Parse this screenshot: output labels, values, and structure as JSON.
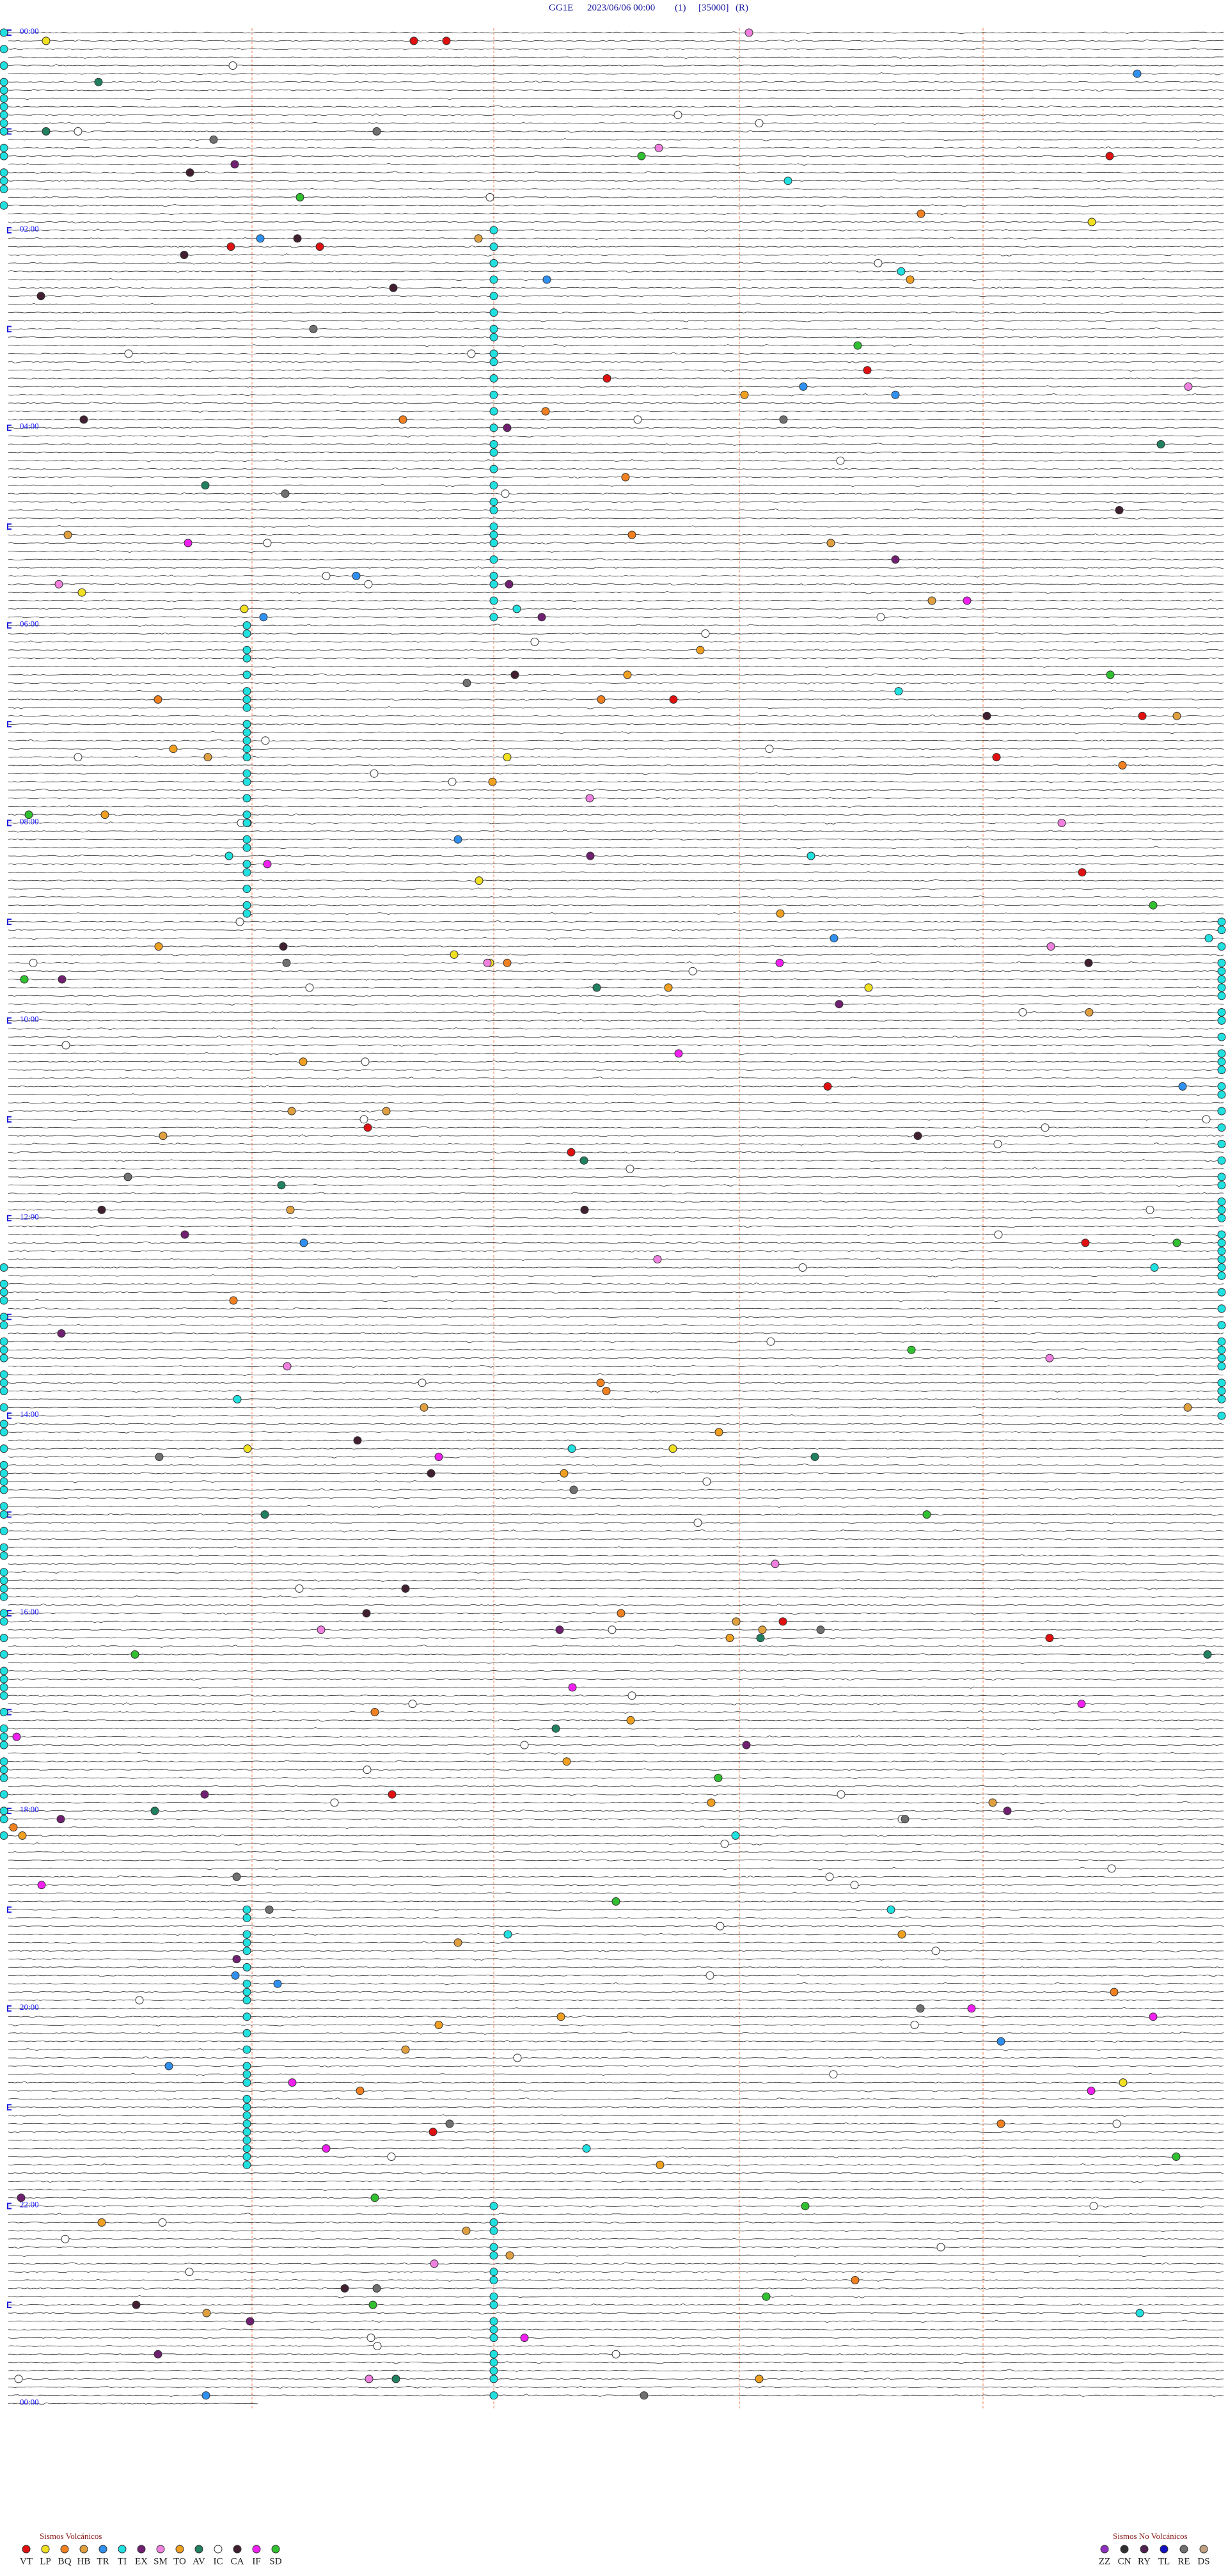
{
  "header": {
    "station": "GG1E",
    "datetime": "2023/06/06 00:00",
    "channel": "(1)",
    "scale": "[35000]",
    "flag": "(R)"
  },
  "hour_labels": [
    "00:00",
    "02:00",
    "04:00",
    "06:00",
    "08:00",
    "10:00",
    "12:00",
    "14:00",
    "16:00",
    "18:00",
    "20:00",
    "22:00",
    "00:00"
  ],
  "legend_volcanic": {
    "title": "Sismos Volcánicos",
    "items": [
      {
        "code": "VT",
        "color": "#e01010"
      },
      {
        "code": "LP",
        "color": "#f0e020"
      },
      {
        "code": "BQ",
        "color": "#f08020"
      },
      {
        "code": "HB",
        "color": "#e0a040"
      },
      {
        "code": "TR",
        "color": "#3090f0"
      },
      {
        "code": "TI",
        "color": "#20e0e0"
      },
      {
        "code": "EX",
        "color": "#702070"
      },
      {
        "code": "SM",
        "color": "#f080e0"
      },
      {
        "code": "TO",
        "color": "#f0a020"
      },
      {
        "code": "AV",
        "color": "#208060"
      },
      {
        "code": "IC",
        "color": "#ffffff"
      },
      {
        "code": "CA",
        "color": "#402030"
      },
      {
        "code": "IF",
        "color": "#f020f0"
      },
      {
        "code": "SD",
        "color": "#30c030"
      }
    ]
  },
  "legend_non_volcanic": {
    "title": "Sismos No Volcánicos",
    "items": [
      {
        "code": "ZZ",
        "color": "#9030c0"
      },
      {
        "code": "CN",
        "color": "#303030"
      },
      {
        "code": "RY",
        "color": "#502050"
      },
      {
        "code": "TL",
        "color": "#1010c0"
      },
      {
        "code": "RE",
        "color": "#707070"
      },
      {
        "code": "DS",
        "color": "#c0a080"
      }
    ]
  }
}
